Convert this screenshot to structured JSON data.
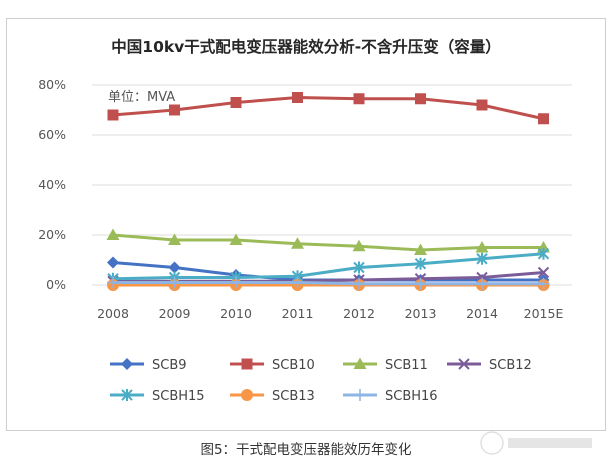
{
  "chart_data": {
    "type": "line",
    "title": "中国10kv干式配电变压器能效分析-不含升压变（容量）",
    "unit_label": "单位：MVA",
    "categories": [
      "2008",
      "2009",
      "2010",
      "2011",
      "2012",
      "2013",
      "2014",
      "2015E"
    ],
    "yticks": [
      "0%",
      "20%",
      "40%",
      "60%",
      "80%"
    ],
    "ylim": [
      0,
      80
    ],
    "legend_position": "bottom",
    "series": [
      {
        "name": "SCB9",
        "marker": "diamond",
        "color": "#4472c4",
        "values": [
          9,
          7,
          4,
          2,
          2,
          2,
          2,
          2
        ]
      },
      {
        "name": "SCB10",
        "marker": "square",
        "color": "#c0504d",
        "values": [
          68,
          70,
          73,
          75,
          74.5,
          74.5,
          72,
          66.5
        ]
      },
      {
        "name": "SCB11",
        "marker": "triangle",
        "color": "#9bbb59",
        "values": [
          20,
          18,
          18,
          16.5,
          15.5,
          14,
          15,
          15
        ]
      },
      {
        "name": "SCB12",
        "marker": "x",
        "color": "#7a5c99",
        "values": [
          1.5,
          1.5,
          1.5,
          1.5,
          2,
          2.5,
          3,
          5
        ]
      },
      {
        "name": "SCBH15",
        "marker": "asterisk",
        "color": "#4bacc6",
        "values": [
          2.5,
          3,
          3,
          3.5,
          7,
          8.5,
          10.5,
          12.5
        ]
      },
      {
        "name": "SCB13",
        "marker": "circle",
        "color": "#f79646",
        "values": [
          0,
          0,
          0,
          0,
          0,
          0,
          0,
          0
        ]
      },
      {
        "name": "SCBH16",
        "marker": "plus",
        "color": "#8eb4e3",
        "values": [
          1,
          1,
          1,
          1,
          0.5,
          0.5,
          0.5,
          0.5
        ]
      }
    ]
  },
  "caption": "图5：干式配电变压器能效历年变化"
}
